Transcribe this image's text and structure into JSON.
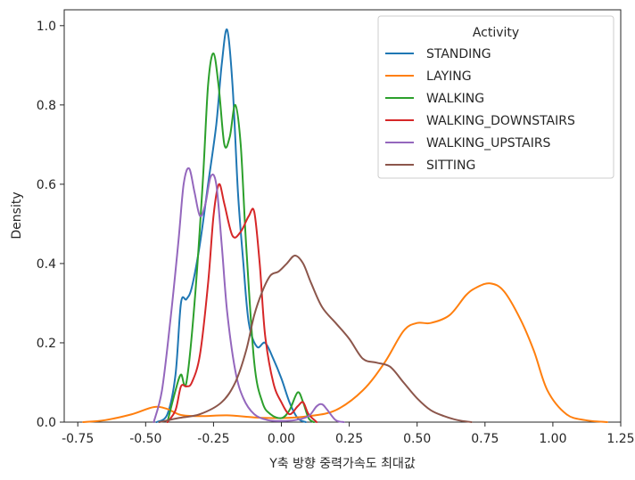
{
  "chart_data": {
    "type": "line",
    "xlabel": "Y축 방향 중력가속도 최대값",
    "ylabel": "Density",
    "xlim": [
      -0.8,
      1.25
    ],
    "ylim": [
      0,
      1.04
    ],
    "x_ticks": [
      -0.75,
      -0.5,
      -0.25,
      0.0,
      0.25,
      0.5,
      0.75,
      1.0,
      1.25
    ],
    "x_tick_labels": [
      "-0.75",
      "-0.50",
      "-0.25",
      "0.00",
      "0.25",
      "0.50",
      "0.75",
      "1.00",
      "1.25"
    ],
    "y_ticks": [
      0.0,
      0.2,
      0.4,
      0.6,
      0.8,
      1.0
    ],
    "y_tick_labels": [
      "0.0",
      "0.2",
      "0.4",
      "0.6",
      "0.8",
      "1.0"
    ],
    "grid": false,
    "legend": {
      "title": "Activity",
      "placement": "top-right"
    },
    "series": [
      {
        "name": "STANDING",
        "color": "#1f77b4",
        "points": [
          [
            -0.46,
            0
          ],
          [
            -0.42,
            0.02
          ],
          [
            -0.39,
            0.12
          ],
          [
            -0.37,
            0.3
          ],
          [
            -0.35,
            0.31
          ],
          [
            -0.33,
            0.34
          ],
          [
            -0.3,
            0.45
          ],
          [
            -0.27,
            0.6
          ],
          [
            -0.24,
            0.75
          ],
          [
            -0.22,
            0.9
          ],
          [
            -0.2,
            0.99
          ],
          [
            -0.18,
            0.85
          ],
          [
            -0.16,
            0.58
          ],
          [
            -0.14,
            0.4
          ],
          [
            -0.12,
            0.25
          ],
          [
            -0.09,
            0.19
          ],
          [
            -0.06,
            0.2
          ],
          [
            -0.03,
            0.16
          ],
          [
            0.0,
            0.11
          ],
          [
            0.03,
            0.05
          ],
          [
            0.06,
            0.01
          ],
          [
            0.09,
            0
          ]
        ]
      },
      {
        "name": "LAYING",
        "color": "#ff7f0e",
        "points": [
          [
            -0.73,
            0
          ],
          [
            -0.65,
            0.005
          ],
          [
            -0.55,
            0.02
          ],
          [
            -0.47,
            0.038
          ],
          [
            -0.42,
            0.033
          ],
          [
            -0.37,
            0.018
          ],
          [
            -0.3,
            0.015
          ],
          [
            -0.2,
            0.017
          ],
          [
            -0.1,
            0.012
          ],
          [
            0.0,
            0.01
          ],
          [
            0.1,
            0.015
          ],
          [
            0.2,
            0.03
          ],
          [
            0.3,
            0.08
          ],
          [
            0.38,
            0.15
          ],
          [
            0.45,
            0.23
          ],
          [
            0.5,
            0.25
          ],
          [
            0.55,
            0.25
          ],
          [
            0.62,
            0.27
          ],
          [
            0.68,
            0.32
          ],
          [
            0.72,
            0.34
          ],
          [
            0.77,
            0.35
          ],
          [
            0.82,
            0.33
          ],
          [
            0.88,
            0.26
          ],
          [
            0.93,
            0.18
          ],
          [
            0.98,
            0.08
          ],
          [
            1.05,
            0.02
          ],
          [
            1.12,
            0.005
          ],
          [
            1.2,
            0
          ]
        ]
      },
      {
        "name": "WALKING",
        "color": "#2ca02c",
        "points": [
          [
            -0.42,
            0
          ],
          [
            -0.39,
            0.08
          ],
          [
            -0.37,
            0.12
          ],
          [
            -0.35,
            0.1
          ],
          [
            -0.32,
            0.3
          ],
          [
            -0.29,
            0.6
          ],
          [
            -0.27,
            0.85
          ],
          [
            -0.25,
            0.93
          ],
          [
            -0.23,
            0.84
          ],
          [
            -0.21,
            0.7
          ],
          [
            -0.19,
            0.72
          ],
          [
            -0.17,
            0.8
          ],
          [
            -0.15,
            0.7
          ],
          [
            -0.13,
            0.45
          ],
          [
            -0.1,
            0.15
          ],
          [
            -0.07,
            0.05
          ],
          [
            -0.04,
            0.02
          ],
          [
            0.0,
            0.01
          ],
          [
            0.03,
            0.03
          ],
          [
            0.06,
            0.075
          ],
          [
            0.08,
            0.05
          ],
          [
            0.1,
            0.01
          ],
          [
            0.12,
            0
          ]
        ]
      },
      {
        "name": "WALKING_DOWNSTAIRS",
        "color": "#d62728",
        "points": [
          [
            -0.42,
            0
          ],
          [
            -0.39,
            0.03
          ],
          [
            -0.37,
            0.09
          ],
          [
            -0.35,
            0.09
          ],
          [
            -0.33,
            0.1
          ],
          [
            -0.3,
            0.17
          ],
          [
            -0.27,
            0.35
          ],
          [
            -0.25,
            0.52
          ],
          [
            -0.23,
            0.6
          ],
          [
            -0.21,
            0.55
          ],
          [
            -0.18,
            0.47
          ],
          [
            -0.15,
            0.48
          ],
          [
            -0.12,
            0.52
          ],
          [
            -0.1,
            0.53
          ],
          [
            -0.08,
            0.4
          ],
          [
            -0.06,
            0.22
          ],
          [
            -0.03,
            0.1
          ],
          [
            0.0,
            0.05
          ],
          [
            0.03,
            0.02
          ],
          [
            0.06,
            0.04
          ],
          [
            0.08,
            0.05
          ],
          [
            0.1,
            0.02
          ],
          [
            0.13,
            0
          ]
        ]
      },
      {
        "name": "WALKING_UPSTAIRS",
        "color": "#9467bd",
        "points": [
          [
            -0.47,
            0
          ],
          [
            -0.44,
            0.08
          ],
          [
            -0.41,
            0.25
          ],
          [
            -0.38,
            0.45
          ],
          [
            -0.36,
            0.6
          ],
          [
            -0.34,
            0.64
          ],
          [
            -0.32,
            0.58
          ],
          [
            -0.3,
            0.52
          ],
          [
            -0.28,
            0.55
          ],
          [
            -0.26,
            0.62
          ],
          [
            -0.24,
            0.6
          ],
          [
            -0.22,
            0.45
          ],
          [
            -0.2,
            0.28
          ],
          [
            -0.17,
            0.13
          ],
          [
            -0.14,
            0.06
          ],
          [
            -0.1,
            0.02
          ],
          [
            -0.05,
            0.005
          ],
          [
            0.0,
            0.003
          ],
          [
            0.05,
            0.005
          ],
          [
            0.1,
            0.015
          ],
          [
            0.13,
            0.04
          ],
          [
            0.15,
            0.045
          ],
          [
            0.17,
            0.03
          ],
          [
            0.2,
            0.005
          ],
          [
            0.23,
            0
          ]
        ]
      },
      {
        "name": "SITTING",
        "color": "#8c564b",
        "points": [
          [
            -0.45,
            0
          ],
          [
            -0.38,
            0.01
          ],
          [
            -0.3,
            0.02
          ],
          [
            -0.22,
            0.05
          ],
          [
            -0.17,
            0.1
          ],
          [
            -0.13,
            0.18
          ],
          [
            -0.1,
            0.27
          ],
          [
            -0.07,
            0.33
          ],
          [
            -0.04,
            0.37
          ],
          [
            -0.01,
            0.38
          ],
          [
            0.02,
            0.4
          ],
          [
            0.05,
            0.42
          ],
          [
            0.08,
            0.4
          ],
          [
            0.11,
            0.35
          ],
          [
            0.15,
            0.29
          ],
          [
            0.2,
            0.25
          ],
          [
            0.25,
            0.21
          ],
          [
            0.3,
            0.16
          ],
          [
            0.35,
            0.15
          ],
          [
            0.4,
            0.14
          ],
          [
            0.45,
            0.1
          ],
          [
            0.5,
            0.06
          ],
          [
            0.55,
            0.03
          ],
          [
            0.6,
            0.015
          ],
          [
            0.65,
            0.005
          ],
          [
            0.7,
            0
          ]
        ]
      }
    ]
  }
}
